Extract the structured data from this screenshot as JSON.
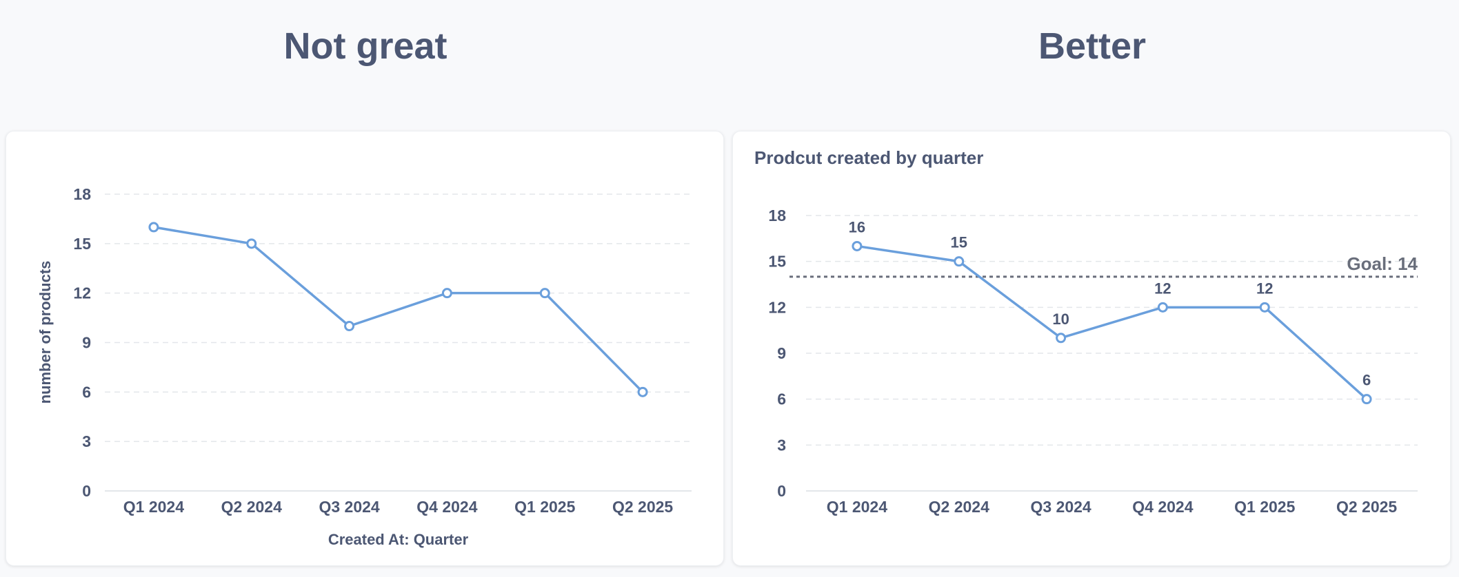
{
  "headings": {
    "left": "Not great",
    "right": "Better"
  },
  "colors": {
    "series": "#6a9fdc",
    "text": "#4c5773",
    "grid": "#e3e6ea",
    "goal": "#696e7b"
  },
  "chart_data": [
    {
      "type": "line",
      "title": "",
      "categories": [
        "Q1 2024",
        "Q2 2024",
        "Q3 2024",
        "Q4 2024",
        "Q1 2025",
        "Q2 2025"
      ],
      "series": [
        {
          "values": [
            16,
            15,
            10,
            12,
            12,
            6
          ]
        }
      ],
      "xlabel": "Created At: Quarter",
      "ylabel": "number of products",
      "ylim": [
        0,
        18
      ],
      "yticks": [
        0,
        3,
        6,
        9,
        12,
        15,
        18
      ],
      "grid": "horizontal dashed",
      "data_labels": false
    },
    {
      "type": "line",
      "title": "Prodcut created by quarter",
      "categories": [
        "Q1 2024",
        "Q2 2024",
        "Q3 2024",
        "Q4 2024",
        "Q1 2025",
        "Q2 2025"
      ],
      "series": [
        {
          "values": [
            16,
            15,
            10,
            12,
            12,
            6
          ]
        }
      ],
      "xlabel": "",
      "ylabel": "",
      "ylim": [
        0,
        18
      ],
      "yticks": [
        0,
        3,
        6,
        9,
        12,
        15,
        18
      ],
      "grid": "horizontal dashed",
      "data_labels": true,
      "goal": {
        "value": 14,
        "label": "Goal: 14"
      }
    }
  ]
}
